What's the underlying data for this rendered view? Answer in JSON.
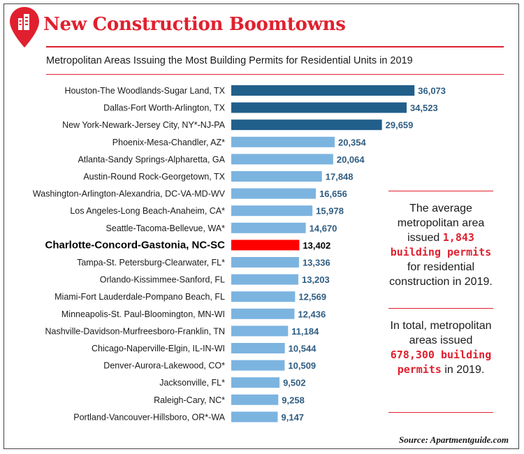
{
  "header": {
    "title": "New Construction Boomtowns",
    "subtitle": "Metropolitan Areas Issuing the Most Building Permits for Residential Units in 2019"
  },
  "colors": {
    "accent": "#e0202e",
    "dark_blue": "#215f8b",
    "light_blue": "#7cb4e0",
    "highlight": "#ff0000"
  },
  "chart_data": {
    "type": "bar",
    "orientation": "horizontal",
    "categories": [
      "Houston-The Woodlands-Sugar Land, TX",
      "Dallas-Fort Worth-Arlington, TX",
      "New York-Newark-Jersey City, NY*-NJ-PA",
      "Phoenix-Mesa-Chandler, AZ*",
      "Atlanta-Sandy Springs-Alpharetta, GA",
      "Austin-Round Rock-Georgetown, TX",
      "Washington-Arlington-Alexandria, DC-VA-MD-WV",
      "Los Angeles-Long Beach-Anaheim, CA*",
      "Seattle-Tacoma-Bellevue, WA*",
      "Charlotte-Concord-Gastonia, NC-SC",
      "Tampa-St. Petersburg-Clearwater, FL*",
      "Orlando-Kissimmee-Sanford, FL",
      "Miami-Fort Lauderdale-Pompano Beach, FL",
      "Minneapolis-St. Paul-Bloomington, MN-WI",
      "Nashville-Davidson-Murfreesboro-Franklin, TN",
      "Chicago-Naperville-Elgin, IL-IN-WI",
      "Denver-Aurora-Lakewood, CO*",
      "Jacksonville, FL*",
      "Raleigh-Cary, NC*",
      "Portland-Vancouver-Hillsboro, OR*-WA"
    ],
    "values": [
      36073,
      34523,
      29659,
      20354,
      20064,
      17848,
      16656,
      15978,
      14670,
      13402,
      13336,
      13203,
      12569,
      12436,
      11184,
      10544,
      10509,
      9502,
      9258,
      9147
    ],
    "value_labels": [
      "36,073",
      "34,523",
      "29,659",
      "20,354",
      "20,064",
      "17,848",
      "16,656",
      "15,978",
      "14,670",
      "13,402",
      "13,336",
      "13,203",
      "12,569",
      "12,436",
      "11,184",
      "10,544",
      "10,509",
      "9,502",
      "9,258",
      "9,147"
    ],
    "highlighted_category": "Charlotte-Concord-Gastonia, NC-SC",
    "dark_bars": 3,
    "xlim": [
      0,
      37000
    ],
    "grid": false,
    "legend": "none"
  },
  "callouts": {
    "average": {
      "pre": "The average metropolitan area issued",
      "highlight": "1,843 building permits",
      "post": "for residential construction in 2019."
    },
    "total": {
      "pre": "In total, metropolitan areas issued",
      "highlight": "678,300 building permits",
      "post": "in 2019."
    }
  },
  "footer": {
    "source": "Source: Apartmentguide.com"
  }
}
